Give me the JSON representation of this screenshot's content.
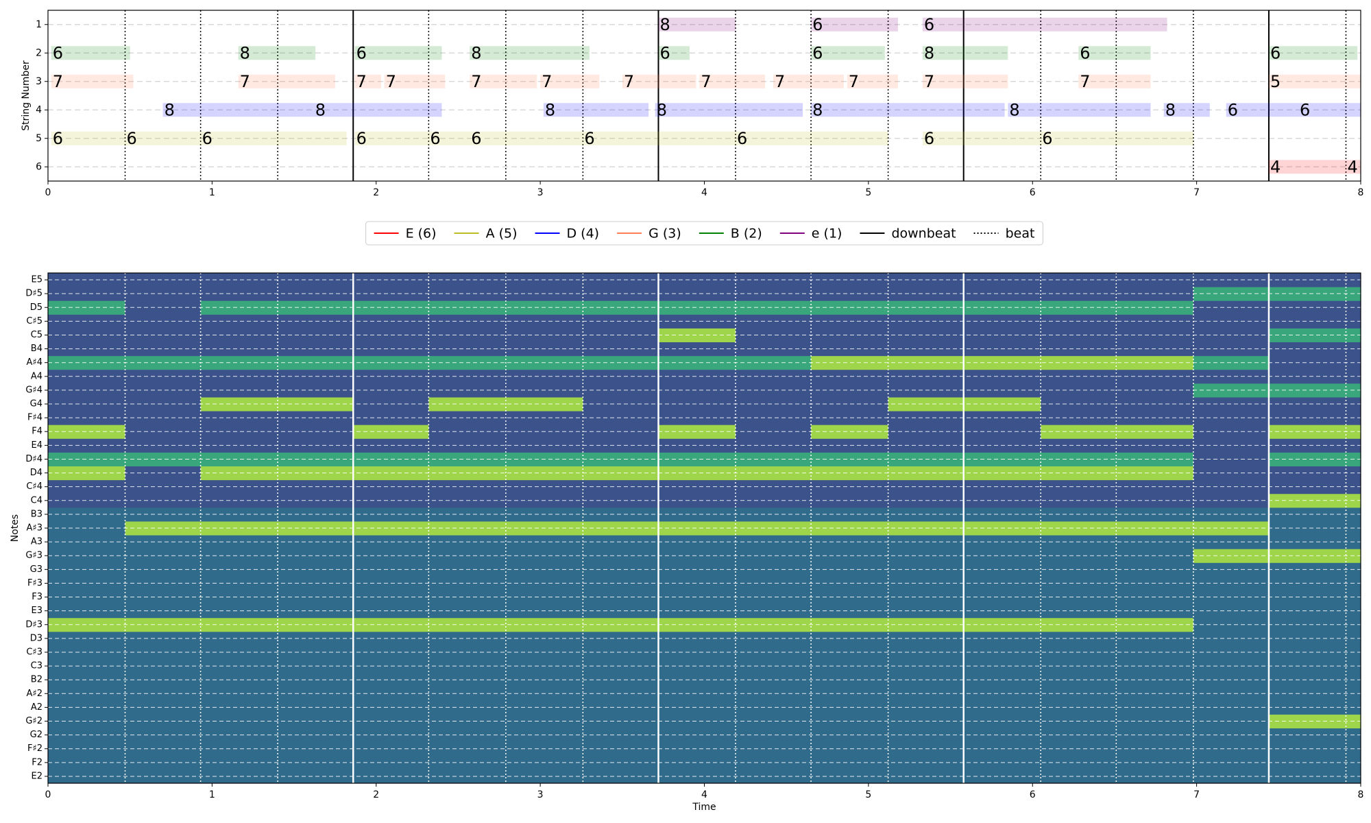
{
  "chart_data": [
    {
      "type": "tab",
      "ylabel": "String Number",
      "xlim": [
        0,
        8
      ],
      "xticks": [
        0,
        1,
        2,
        3,
        4,
        5,
        6,
        7,
        8
      ],
      "ylim": [
        6.5,
        0.5
      ],
      "yticks": [
        1,
        2,
        3,
        4,
        5,
        6
      ],
      "grid": true,
      "legend": "below",
      "series": [
        {
          "name": "E (6)",
          "color": "#ff0000",
          "string": 6,
          "notes": [
            {
              "start": 7.44,
              "end": 7.91,
              "fret": 4
            },
            {
              "start": 7.91,
              "end": 8,
              "fret": 4
            }
          ]
        },
        {
          "name": "A (5)",
          "color": "#bcbd22",
          "string": 5,
          "notes": [
            {
              "start": 0.02,
              "end": 0.47,
              "fret": 6
            },
            {
              "start": 0.47,
              "end": 0.93,
              "fret": 6
            },
            {
              "start": 0.93,
              "end": 1.82,
              "fret": 6
            },
            {
              "start": 1.87,
              "end": 2.32,
              "fret": 6
            },
            {
              "start": 2.32,
              "end": 2.57,
              "fret": 6
            },
            {
              "start": 2.57,
              "end": 3.26,
              "fret": 6
            },
            {
              "start": 3.26,
              "end": 4.19,
              "fret": 6
            },
            {
              "start": 4.19,
              "end": 5.12,
              "fret": 6
            },
            {
              "start": 5.33,
              "end": 6.05,
              "fret": 6
            },
            {
              "start": 6.05,
              "end": 6.98,
              "fret": 6
            }
          ]
        },
        {
          "name": "D (4)",
          "color": "#0000ff",
          "string": 4,
          "notes": [
            {
              "start": 0.7,
              "end": 1.62,
              "fret": 8
            },
            {
              "start": 1.62,
              "end": 2.4,
              "fret": 8
            },
            {
              "start": 3.02,
              "end": 3.66,
              "fret": 8
            },
            {
              "start": 3.7,
              "end": 4.6,
              "fret": 8
            },
            {
              "start": 4.65,
              "end": 5.83,
              "fret": 8
            },
            {
              "start": 5.85,
              "end": 6.72,
              "fret": 8
            },
            {
              "start": 6.8,
              "end": 7.08,
              "fret": 8
            },
            {
              "start": 7.18,
              "end": 7.62,
              "fret": 6
            },
            {
              "start": 7.62,
              "end": 8,
              "fret": 6
            }
          ]
        },
        {
          "name": "G (3)",
          "color": "#ff7f50",
          "string": 3,
          "notes": [
            {
              "start": 0.02,
              "end": 0.52,
              "fret": 7
            },
            {
              "start": 1.16,
              "end": 1.75,
              "fret": 7
            },
            {
              "start": 1.87,
              "end": 2.03,
              "fret": 7
            },
            {
              "start": 2.05,
              "end": 2.42,
              "fret": 7
            },
            {
              "start": 2.57,
              "end": 2.98,
              "fret": 7
            },
            {
              "start": 3.0,
              "end": 3.36,
              "fret": 7
            },
            {
              "start": 3.5,
              "end": 3.95,
              "fret": 7
            },
            {
              "start": 3.97,
              "end": 4.37,
              "fret": 7
            },
            {
              "start": 4.42,
              "end": 4.85,
              "fret": 7
            },
            {
              "start": 4.87,
              "end": 5.18,
              "fret": 7
            },
            {
              "start": 5.33,
              "end": 5.85,
              "fret": 7
            },
            {
              "start": 6.28,
              "end": 6.72,
              "fret": 7
            },
            {
              "start": 7.44,
              "end": 8,
              "fret": 5
            }
          ]
        },
        {
          "name": "B (2)",
          "color": "#008000",
          "string": 2,
          "notes": [
            {
              "start": 0.02,
              "end": 0.5,
              "fret": 6
            },
            {
              "start": 1.16,
              "end": 1.63,
              "fret": 8
            },
            {
              "start": 1.87,
              "end": 2.4,
              "fret": 6
            },
            {
              "start": 2.57,
              "end": 3.3,
              "fret": 8
            },
            {
              "start": 3.72,
              "end": 3.91,
              "fret": 6
            },
            {
              "start": 4.65,
              "end": 5.1,
              "fret": 6
            },
            {
              "start": 5.33,
              "end": 5.85,
              "fret": 8
            },
            {
              "start": 6.28,
              "end": 6.72,
              "fret": 6
            },
            {
              "start": 7.44,
              "end": 7.98,
              "fret": 6
            }
          ]
        },
        {
          "name": "e (1)",
          "color": "#800080",
          "string": 1,
          "notes": [
            {
              "start": 3.72,
              "end": 4.19,
              "fret": 8
            },
            {
              "start": 4.65,
              "end": 5.18,
              "fret": 6
            },
            {
              "start": 5.33,
              "end": 6.82,
              "fret": 6
            }
          ]
        }
      ],
      "markers": [
        {
          "name": "downbeat",
          "color": "#000000",
          "style": "solid",
          "values": [
            1.86,
            3.72,
            5.58,
            7.44
          ]
        },
        {
          "name": "beat",
          "color": "#000000",
          "style": "dotted",
          "values": [
            0.47,
            0.93,
            1.4,
            2.32,
            2.79,
            3.26,
            4.19,
            4.65,
            5.12,
            6.05,
            6.51,
            6.98,
            7.91
          ]
        }
      ]
    },
    {
      "type": "heatmap",
      "xlabel": "Time",
      "ylabel": "Notes",
      "colormap": "viridis",
      "clim": [
        0,
        1
      ],
      "xlim": [
        0,
        8
      ],
      "xticks": [
        0,
        1,
        2,
        3,
        4,
        5,
        6,
        7,
        8
      ],
      "grid": true,
      "marker_color": "#ffffff",
      "categories": [
        "E2",
        "F2",
        "F♯2",
        "G2",
        "G♯2",
        "A2",
        "A♯2",
        "B2",
        "C3",
        "C♯3",
        "D3",
        "D♯3",
        "E3",
        "F3",
        "F♯3",
        "G3",
        "G♯3",
        "A3",
        "A♯3",
        "B3",
        "C4",
        "C♯4",
        "D4",
        "D♯4",
        "E4",
        "F4",
        "F♯4",
        "G4",
        "G♯4",
        "A4",
        "A♯4",
        "B4",
        "C5",
        "C♯5",
        "D5",
        "D♯5",
        "E5"
      ],
      "x_edges": [
        0,
        0.47,
        0.93,
        1.4,
        1.86,
        2.32,
        2.79,
        3.26,
        3.72,
        4.19,
        4.65,
        5.12,
        5.58,
        6.05,
        6.51,
        6.98,
        7.44,
        7.91,
        8
      ],
      "values": [
        [
          0.35,
          0.35,
          0.35,
          0.35,
          0.35,
          0.35,
          0.35,
          0.35,
          0.35,
          0.35,
          0.35,
          0.35,
          0.35,
          0.35,
          0.35,
          0.35,
          0.35,
          0.35
        ],
        [
          0.35,
          0.35,
          0.35,
          0.35,
          0.35,
          0.35,
          0.35,
          0.35,
          0.35,
          0.35,
          0.35,
          0.35,
          0.35,
          0.35,
          0.35,
          0.35,
          0.35,
          0.35
        ],
        [
          0.35,
          0.35,
          0.35,
          0.35,
          0.35,
          0.35,
          0.35,
          0.35,
          0.35,
          0.35,
          0.35,
          0.35,
          0.35,
          0.35,
          0.35,
          0.35,
          0.35,
          0.35
        ],
        [
          0.35,
          0.35,
          0.35,
          0.35,
          0.35,
          0.35,
          0.35,
          0.35,
          0.35,
          0.35,
          0.35,
          0.35,
          0.35,
          0.35,
          0.35,
          0.35,
          0.35,
          0.35
        ],
        [
          0.35,
          0.35,
          0.35,
          0.35,
          0.35,
          0.35,
          0.35,
          0.35,
          0.35,
          0.35,
          0.35,
          0.35,
          0.35,
          0.35,
          0.35,
          0.35,
          0.85,
          0.85
        ],
        [
          0.35,
          0.35,
          0.35,
          0.35,
          0.35,
          0.35,
          0.35,
          0.35,
          0.35,
          0.35,
          0.35,
          0.35,
          0.35,
          0.35,
          0.35,
          0.35,
          0.35,
          0.35
        ],
        [
          0.35,
          0.35,
          0.35,
          0.35,
          0.35,
          0.35,
          0.35,
          0.35,
          0.35,
          0.35,
          0.35,
          0.35,
          0.35,
          0.35,
          0.35,
          0.35,
          0.35,
          0.35
        ],
        [
          0.35,
          0.35,
          0.35,
          0.35,
          0.35,
          0.35,
          0.35,
          0.35,
          0.35,
          0.35,
          0.35,
          0.35,
          0.35,
          0.35,
          0.35,
          0.35,
          0.35,
          0.35
        ],
        [
          0.35,
          0.35,
          0.35,
          0.35,
          0.35,
          0.35,
          0.35,
          0.35,
          0.35,
          0.35,
          0.35,
          0.35,
          0.35,
          0.35,
          0.35,
          0.35,
          0.35,
          0.35
        ],
        [
          0.35,
          0.35,
          0.35,
          0.35,
          0.35,
          0.35,
          0.35,
          0.35,
          0.35,
          0.35,
          0.35,
          0.35,
          0.35,
          0.35,
          0.35,
          0.35,
          0.35,
          0.35
        ],
        [
          0.35,
          0.35,
          0.35,
          0.35,
          0.35,
          0.35,
          0.35,
          0.35,
          0.35,
          0.35,
          0.35,
          0.35,
          0.35,
          0.35,
          0.35,
          0.35,
          0.35,
          0.35
        ],
        [
          0.85,
          0.85,
          0.85,
          0.85,
          0.85,
          0.85,
          0.85,
          0.85,
          0.85,
          0.85,
          0.85,
          0.85,
          0.85,
          0.85,
          0.85,
          0.35,
          0.35,
          0.35
        ],
        [
          0.35,
          0.35,
          0.35,
          0.35,
          0.35,
          0.35,
          0.35,
          0.35,
          0.35,
          0.35,
          0.35,
          0.35,
          0.35,
          0.35,
          0.35,
          0.35,
          0.35,
          0.35
        ],
        [
          0.35,
          0.35,
          0.35,
          0.35,
          0.35,
          0.35,
          0.35,
          0.35,
          0.35,
          0.35,
          0.35,
          0.35,
          0.35,
          0.35,
          0.35,
          0.35,
          0.35,
          0.35
        ],
        [
          0.35,
          0.35,
          0.35,
          0.35,
          0.35,
          0.35,
          0.35,
          0.35,
          0.35,
          0.35,
          0.35,
          0.35,
          0.35,
          0.35,
          0.35,
          0.35,
          0.35,
          0.35
        ],
        [
          0.35,
          0.35,
          0.35,
          0.35,
          0.35,
          0.35,
          0.35,
          0.35,
          0.35,
          0.35,
          0.35,
          0.35,
          0.35,
          0.35,
          0.35,
          0.35,
          0.35,
          0.35
        ],
        [
          0.35,
          0.35,
          0.35,
          0.35,
          0.35,
          0.35,
          0.35,
          0.35,
          0.35,
          0.35,
          0.35,
          0.35,
          0.35,
          0.35,
          0.35,
          0.85,
          0.85,
          0.85
        ],
        [
          0.35,
          0.35,
          0.35,
          0.35,
          0.35,
          0.35,
          0.35,
          0.35,
          0.35,
          0.35,
          0.35,
          0.35,
          0.35,
          0.35,
          0.35,
          0.35,
          0.35,
          0.35
        ],
        [
          0.35,
          0.85,
          0.85,
          0.85,
          0.85,
          0.85,
          0.85,
          0.85,
          0.85,
          0.85,
          0.85,
          0.85,
          0.85,
          0.85,
          0.85,
          0.85,
          0.35,
          0.35
        ],
        [
          0.35,
          0.35,
          0.35,
          0.35,
          0.35,
          0.35,
          0.35,
          0.35,
          0.35,
          0.35,
          0.35,
          0.35,
          0.35,
          0.35,
          0.35,
          0.35,
          0.35,
          0.35
        ],
        [
          0.25,
          0.25,
          0.25,
          0.25,
          0.25,
          0.25,
          0.25,
          0.25,
          0.25,
          0.25,
          0.25,
          0.25,
          0.25,
          0.25,
          0.25,
          0.25,
          0.85,
          0.85
        ],
        [
          0.25,
          0.25,
          0.25,
          0.25,
          0.25,
          0.25,
          0.25,
          0.25,
          0.25,
          0.25,
          0.25,
          0.25,
          0.25,
          0.25,
          0.25,
          0.25,
          0.25,
          0.25
        ],
        [
          0.85,
          0.25,
          0.85,
          0.85,
          0.85,
          0.85,
          0.85,
          0.85,
          0.85,
          0.85,
          0.85,
          0.85,
          0.85,
          0.85,
          0.85,
          0.25,
          0.25,
          0.25
        ],
        [
          0.6,
          0.6,
          0.6,
          0.6,
          0.6,
          0.6,
          0.6,
          0.6,
          0.6,
          0.6,
          0.6,
          0.6,
          0.6,
          0.6,
          0.6,
          0.25,
          0.6,
          0.6
        ],
        [
          0.25,
          0.25,
          0.25,
          0.25,
          0.25,
          0.25,
          0.25,
          0.25,
          0.25,
          0.25,
          0.25,
          0.25,
          0.25,
          0.25,
          0.25,
          0.25,
          0.25,
          0.25
        ],
        [
          0.85,
          0.25,
          0.25,
          0.25,
          0.85,
          0.25,
          0.25,
          0.25,
          0.85,
          0.25,
          0.85,
          0.25,
          0.25,
          0.85,
          0.85,
          0.25,
          0.85,
          0.85
        ],
        [
          0.25,
          0.25,
          0.25,
          0.25,
          0.25,
          0.25,
          0.25,
          0.25,
          0.25,
          0.25,
          0.25,
          0.25,
          0.25,
          0.25,
          0.25,
          0.25,
          0.25,
          0.25
        ],
        [
          0.25,
          0.25,
          0.85,
          0.85,
          0.25,
          0.85,
          0.85,
          0.25,
          0.25,
          0.25,
          0.25,
          0.85,
          0.85,
          0.25,
          0.25,
          0.25,
          0.25,
          0.25
        ],
        [
          0.25,
          0.25,
          0.25,
          0.25,
          0.25,
          0.25,
          0.25,
          0.25,
          0.25,
          0.25,
          0.25,
          0.25,
          0.25,
          0.25,
          0.25,
          0.6,
          0.6,
          0.6
        ],
        [
          0.25,
          0.25,
          0.25,
          0.25,
          0.25,
          0.25,
          0.25,
          0.25,
          0.25,
          0.25,
          0.25,
          0.25,
          0.25,
          0.25,
          0.25,
          0.25,
          0.25,
          0.25
        ],
        [
          0.6,
          0.6,
          0.6,
          0.6,
          0.6,
          0.6,
          0.6,
          0.6,
          0.6,
          0.6,
          0.85,
          0.85,
          0.85,
          0.85,
          0.85,
          0.6,
          0.25,
          0.25
        ],
        [
          0.25,
          0.25,
          0.25,
          0.25,
          0.25,
          0.25,
          0.25,
          0.25,
          0.25,
          0.25,
          0.25,
          0.25,
          0.25,
          0.25,
          0.25,
          0.25,
          0.25,
          0.25
        ],
        [
          0.25,
          0.25,
          0.25,
          0.25,
          0.25,
          0.25,
          0.25,
          0.25,
          0.85,
          0.25,
          0.25,
          0.25,
          0.25,
          0.25,
          0.25,
          0.25,
          0.6,
          0.6
        ],
        [
          0.25,
          0.25,
          0.25,
          0.25,
          0.25,
          0.25,
          0.25,
          0.25,
          0.25,
          0.25,
          0.25,
          0.25,
          0.25,
          0.25,
          0.25,
          0.25,
          0.25,
          0.25
        ],
        [
          0.6,
          0.25,
          0.6,
          0.6,
          0.6,
          0.6,
          0.6,
          0.6,
          0.6,
          0.6,
          0.6,
          0.6,
          0.6,
          0.6,
          0.6,
          0.25,
          0.25,
          0.25
        ],
        [
          0.25,
          0.25,
          0.25,
          0.25,
          0.25,
          0.25,
          0.25,
          0.25,
          0.25,
          0.25,
          0.25,
          0.25,
          0.25,
          0.25,
          0.25,
          0.6,
          0.6,
          0.6
        ],
        [
          0.25,
          0.25,
          0.25,
          0.25,
          0.25,
          0.25,
          0.25,
          0.25,
          0.25,
          0.25,
          0.25,
          0.25,
          0.25,
          0.25,
          0.25,
          0.25,
          0.25,
          0.25
        ]
      ]
    }
  ]
}
